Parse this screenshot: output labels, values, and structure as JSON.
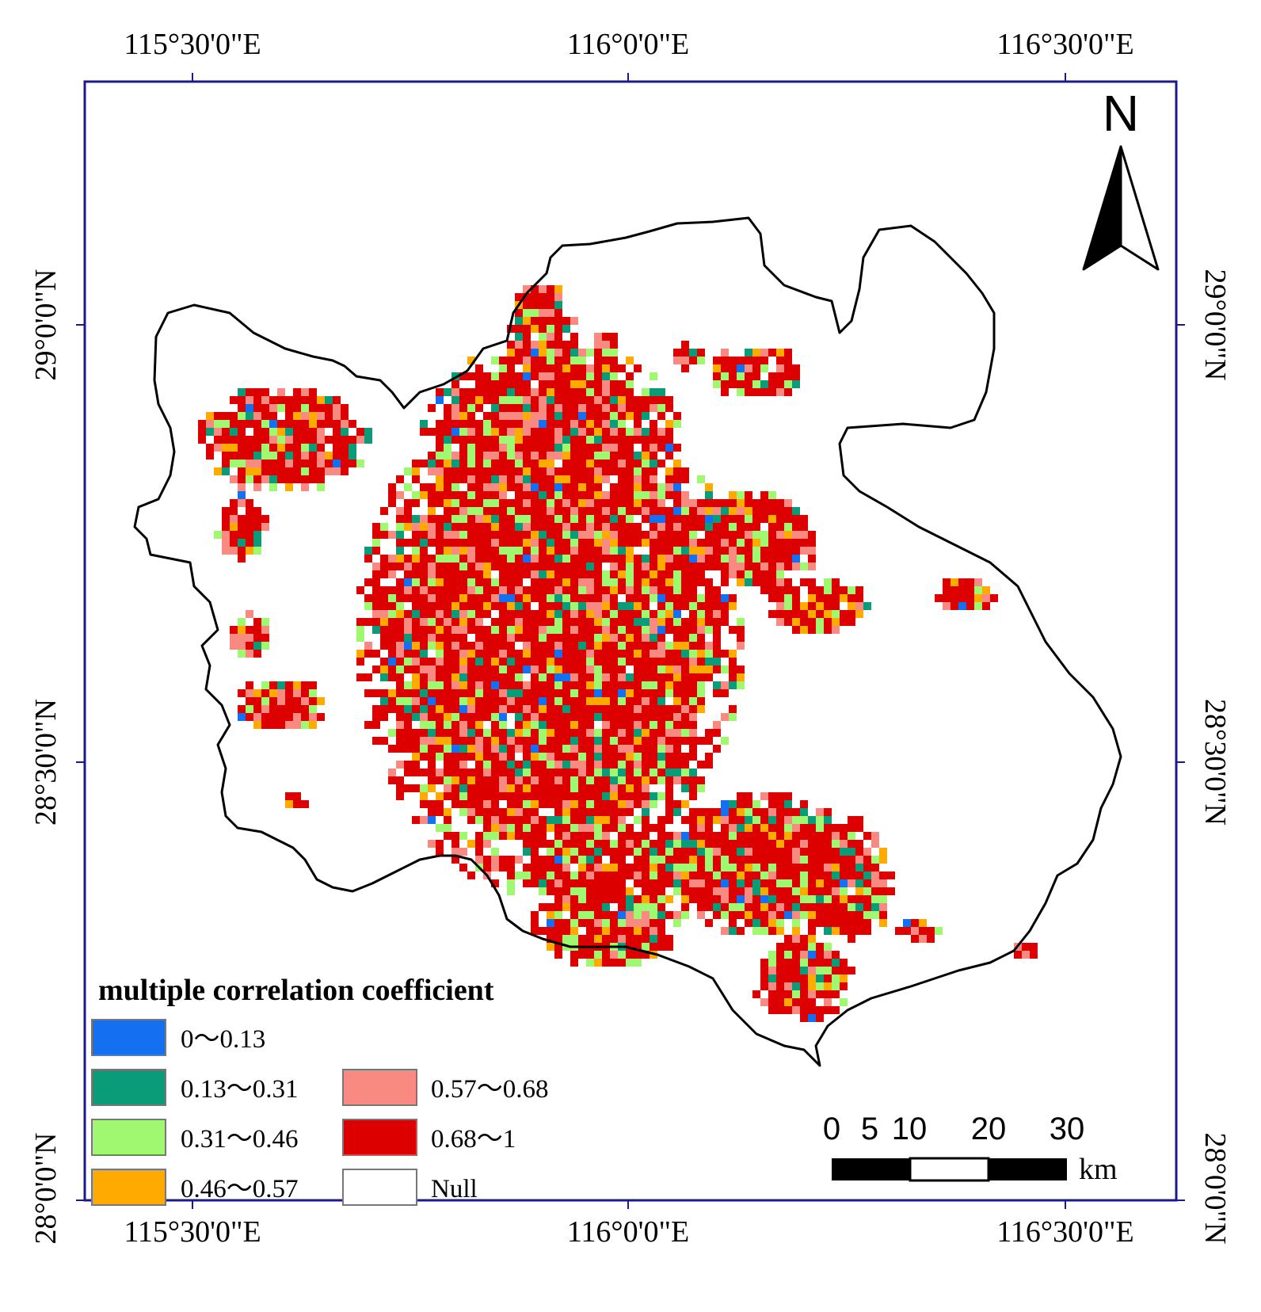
{
  "graticule": {
    "top_labels": [
      "115°30'0\"E",
      "116°0'0\"E",
      "116°30'0\"E"
    ],
    "bottom_labels": [
      "115°30'0\"E",
      "116°0'0\"E",
      "116°30'0\"E"
    ],
    "left_labels": [
      "29°0'0\"N",
      "28°30'0\"N",
      "28°0'0\"N"
    ],
    "right_labels": [
      "29°0'0\"N",
      "28°30'0\"N",
      "28°0'0\"N"
    ]
  },
  "north_arrow": {
    "label": "N",
    "icon": "north-arrow-icon"
  },
  "legend": {
    "title": "multiple correlation coefficient",
    "classes": [
      {
        "label": "0～0.13",
        "color": "#1470f0"
      },
      {
        "label": "0.13～0.31",
        "color": "#0a9b78"
      },
      {
        "label": "0.31～0.46",
        "color": "#a0f870"
      },
      {
        "label": "0.46～0.57",
        "color": "#ffaa00"
      },
      {
        "label": "0.57～0.68",
        "color": "#f88a82"
      },
      {
        "label": "0.68～1",
        "color": "#dd0000"
      },
      {
        "label": "Null",
        "color": "#ffffff"
      }
    ]
  },
  "scale_bar": {
    "ticks": [
      "0",
      "5",
      "10",
      "20",
      "30"
    ],
    "unit": "km"
  },
  "colors": {
    "frame": "#1a1a8c",
    "boundary": "#000000"
  }
}
